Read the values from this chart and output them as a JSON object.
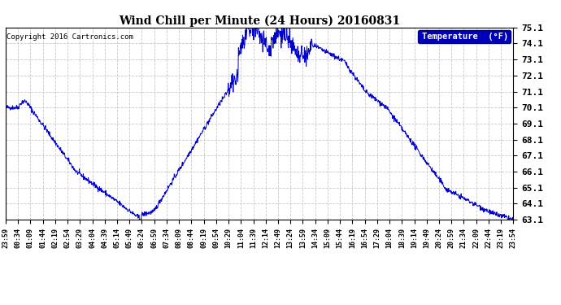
{
  "title": "Wind Chill per Minute (24 Hours) 20160831",
  "legend_label": "Temperature  (°F)",
  "copyright": "Copyright 2016 Cartronics.com",
  "background_color": "#ffffff",
  "plot_bg_color": "#ffffff",
  "grid_color": "#c8c8c8",
  "line_color": "#0000cc",
  "legend_bg": "#0000bb",
  "legend_fg": "#ffffff",
  "ylim_min": 63.1,
  "ylim_max": 75.1,
  "ytick_step": 1.0,
  "x_labels": [
    "23:59",
    "00:34",
    "01:09",
    "01:44",
    "02:19",
    "02:54",
    "03:29",
    "04:04",
    "04:39",
    "05:14",
    "05:49",
    "06:24",
    "06:59",
    "07:34",
    "08:09",
    "08:44",
    "09:19",
    "09:54",
    "10:29",
    "11:04",
    "11:39",
    "12:14",
    "12:49",
    "13:24",
    "13:59",
    "14:34",
    "15:09",
    "15:44",
    "16:19",
    "16:54",
    "17:29",
    "18:04",
    "18:39",
    "19:14",
    "19:49",
    "20:24",
    "20:59",
    "21:34",
    "22:09",
    "22:44",
    "23:19",
    "23:54"
  ]
}
